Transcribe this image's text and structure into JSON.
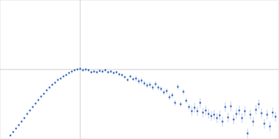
{
  "chart_data": {
    "type": "scatter",
    "color": "#4472c4",
    "marker": "circle",
    "grid": true,
    "tick_labels": false,
    "xlim": [
      0,
      4
    ],
    "ylim": [
      0,
      2
    ],
    "xticks": [
      1.15
    ],
    "yticks": [
      1.0
    ],
    "x": [
      0.15,
      0.19,
      0.23,
      0.27,
      0.31,
      0.35,
      0.39,
      0.43,
      0.47,
      0.51,
      0.55,
      0.59,
      0.63,
      0.67,
      0.71,
      0.75,
      0.79,
      0.83,
      0.87,
      0.91,
      0.95,
      0.99,
      1.03,
      1.07,
      1.11,
      1.15,
      1.19,
      1.23,
      1.27,
      1.31,
      1.35,
      1.39,
      1.43,
      1.47,
      1.51,
      1.55,
      1.59,
      1.63,
      1.67,
      1.71,
      1.75,
      1.79,
      1.83,
      1.87,
      1.91,
      1.95,
      1.99,
      2.03,
      2.07,
      2.11,
      2.15,
      2.19,
      2.23,
      2.27,
      2.31,
      2.35,
      2.39,
      2.43,
      2.47,
      2.51,
      2.55,
      2.59,
      2.63,
      2.67,
      2.71,
      2.75,
      2.79,
      2.83,
      2.87,
      2.91,
      2.95,
      2.99,
      3.03,
      3.07,
      3.11,
      3.15,
      3.19,
      3.23,
      3.27,
      3.31,
      3.35,
      3.39,
      3.43,
      3.47,
      3.51,
      3.55,
      3.59,
      3.63,
      3.67,
      3.71,
      3.75,
      3.79,
      3.83,
      3.87,
      3.91,
      3.95
    ],
    "values": [
      0.05,
      0.1,
      0.15,
      0.2,
      0.25,
      0.3,
      0.36,
      0.41,
      0.46,
      0.51,
      0.56,
      0.61,
      0.65,
      0.7,
      0.74,
      0.78,
      0.81,
      0.85,
      0.87,
      0.9,
      0.92,
      0.95,
      0.97,
      0.99,
      1.0,
      1.01,
      0.99,
      1.0,
      0.99,
      0.96,
      0.97,
      0.96,
      0.98,
      0.97,
      0.99,
      0.96,
      0.97,
      0.95,
      0.96,
      0.93,
      0.92,
      0.89,
      0.85,
      0.9,
      0.86,
      0.87,
      0.83,
      0.84,
      0.8,
      0.77,
      0.78,
      0.74,
      0.79,
      0.74,
      0.72,
      0.67,
      0.69,
      0.6,
      0.63,
      0.52,
      0.75,
      0.5,
      0.68,
      0.55,
      0.46,
      0.4,
      0.45,
      0.4,
      0.52,
      0.38,
      0.41,
      0.36,
      0.33,
      0.35,
      0.3,
      0.34,
      0.25,
      0.46,
      0.31,
      0.47,
      0.28,
      0.36,
      0.41,
      0.3,
      0.4,
      0.08,
      0.35,
      0.25,
      0.42,
      0.5,
      0.37,
      0.22,
      0.35,
      0.18,
      0.38,
      0.32
    ],
    "errors": [
      0.01,
      0.01,
      0.01,
      0.01,
      0.01,
      0.01,
      0.01,
      0.01,
      0.01,
      0.01,
      0.01,
      0.01,
      0.01,
      0.01,
      0.01,
      0.01,
      0.01,
      0.01,
      0.01,
      0.01,
      0.01,
      0.01,
      0.01,
      0.01,
      0.01,
      0.02,
      0.02,
      0.02,
      0.02,
      0.02,
      0.02,
      0.02,
      0.02,
      0.02,
      0.02,
      0.02,
      0.02,
      0.02,
      0.02,
      0.02,
      0.02,
      0.02,
      0.02,
      0.02,
      0.02,
      0.04,
      0.04,
      0.04,
      0.04,
      0.04,
      0.04,
      0.04,
      0.04,
      0.04,
      0.04,
      0.04,
      0.04,
      0.04,
      0.04,
      0.04,
      0.04,
      0.04,
      0.04,
      0.04,
      0.04,
      0.07,
      0.07,
      0.07,
      0.07,
      0.07,
      0.07,
      0.07,
      0.07,
      0.07,
      0.07,
      0.07,
      0.07,
      0.07,
      0.07,
      0.07,
      0.07,
      0.07,
      0.07,
      0.07,
      0.07,
      0.07,
      0.07,
      0.07,
      0.07,
      0.07,
      0.07,
      0.07,
      0.07,
      0.07,
      0.07,
      0.07
    ]
  }
}
